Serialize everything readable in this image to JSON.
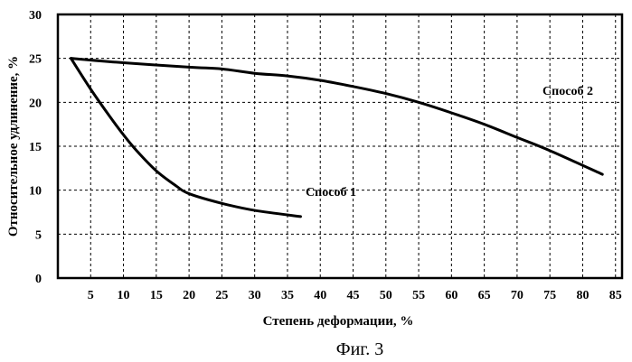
{
  "chart_data": {
    "type": "line",
    "xlabel": "Степень деформации, %",
    "ylabel": "Относительное удлинение, %",
    "xlim": [
      0,
      86
    ],
    "ylim": [
      0,
      30
    ],
    "xticks": [
      5,
      10,
      15,
      20,
      25,
      30,
      35,
      40,
      45,
      50,
      55,
      60,
      65,
      70,
      75,
      80,
      85
    ],
    "yticks": [
      0,
      5,
      10,
      15,
      20,
      25,
      30
    ],
    "grid": true,
    "series": [
      {
        "name": "Способ 1",
        "x": [
          2,
          5,
          8,
          10,
          12,
          15,
          18,
          20,
          25,
          30,
          37
        ],
        "y": [
          25,
          21.5,
          18.3,
          16.3,
          14.5,
          12.2,
          10.5,
          9.6,
          8.5,
          7.7,
          7.0
        ]
      },
      {
        "name": "Способ 2",
        "x": [
          2,
          10,
          20,
          25,
          30,
          35,
          40,
          45,
          50,
          55,
          60,
          65,
          70,
          75,
          83
        ],
        "y": [
          25,
          24.5,
          24,
          23.8,
          23.3,
          23,
          22.5,
          21.8,
          21,
          20,
          18.8,
          17.5,
          16,
          14.5,
          11.8
        ]
      }
    ]
  },
  "caption": "Фиг. 3"
}
